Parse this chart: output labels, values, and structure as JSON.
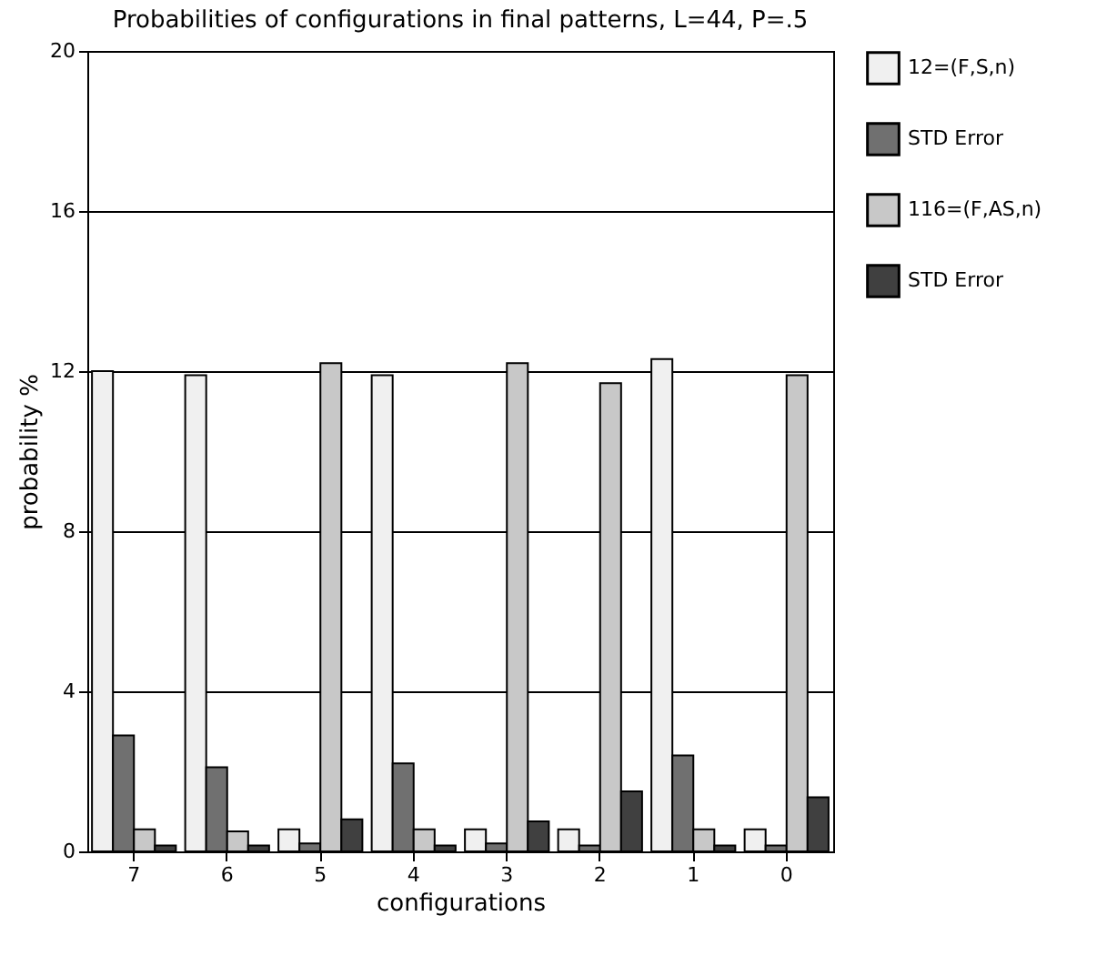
{
  "chart_data": {
    "type": "bar",
    "title": "Probabilities of configurations in final patterns, L=44, P=.5",
    "xlabel": "configurations",
    "ylabel": "probability %",
    "categories": [
      "7",
      "6",
      "5",
      "4",
      "3",
      "2",
      "1",
      "0"
    ],
    "series": [
      {
        "name": "12=(F,S,n)",
        "color": "#f0f0f0",
        "values": [
          12.0,
          11.9,
          0.55,
          11.9,
          0.55,
          0.55,
          12.3,
          0.55
        ]
      },
      {
        "name": "STD Error",
        "color": "#707070",
        "values": [
          2.9,
          2.1,
          0.2,
          2.2,
          0.2,
          0.15,
          2.4,
          0.15
        ]
      },
      {
        "name": "116=(F,AS,n)",
        "color": "#c8c8c8",
        "values": [
          0.55,
          0.5,
          12.2,
          0.55,
          12.2,
          11.7,
          0.55,
          11.9
        ]
      },
      {
        "name": "STD Error",
        "color": "#404040",
        "values": [
          0.15,
          0.15,
          0.8,
          0.15,
          0.75,
          1.5,
          0.15,
          1.35
        ]
      }
    ],
    "ylim": [
      0,
      20
    ],
    "yticks": [
      0,
      4,
      8,
      12,
      16,
      20
    ],
    "grid": "y",
    "legend": "top right"
  }
}
